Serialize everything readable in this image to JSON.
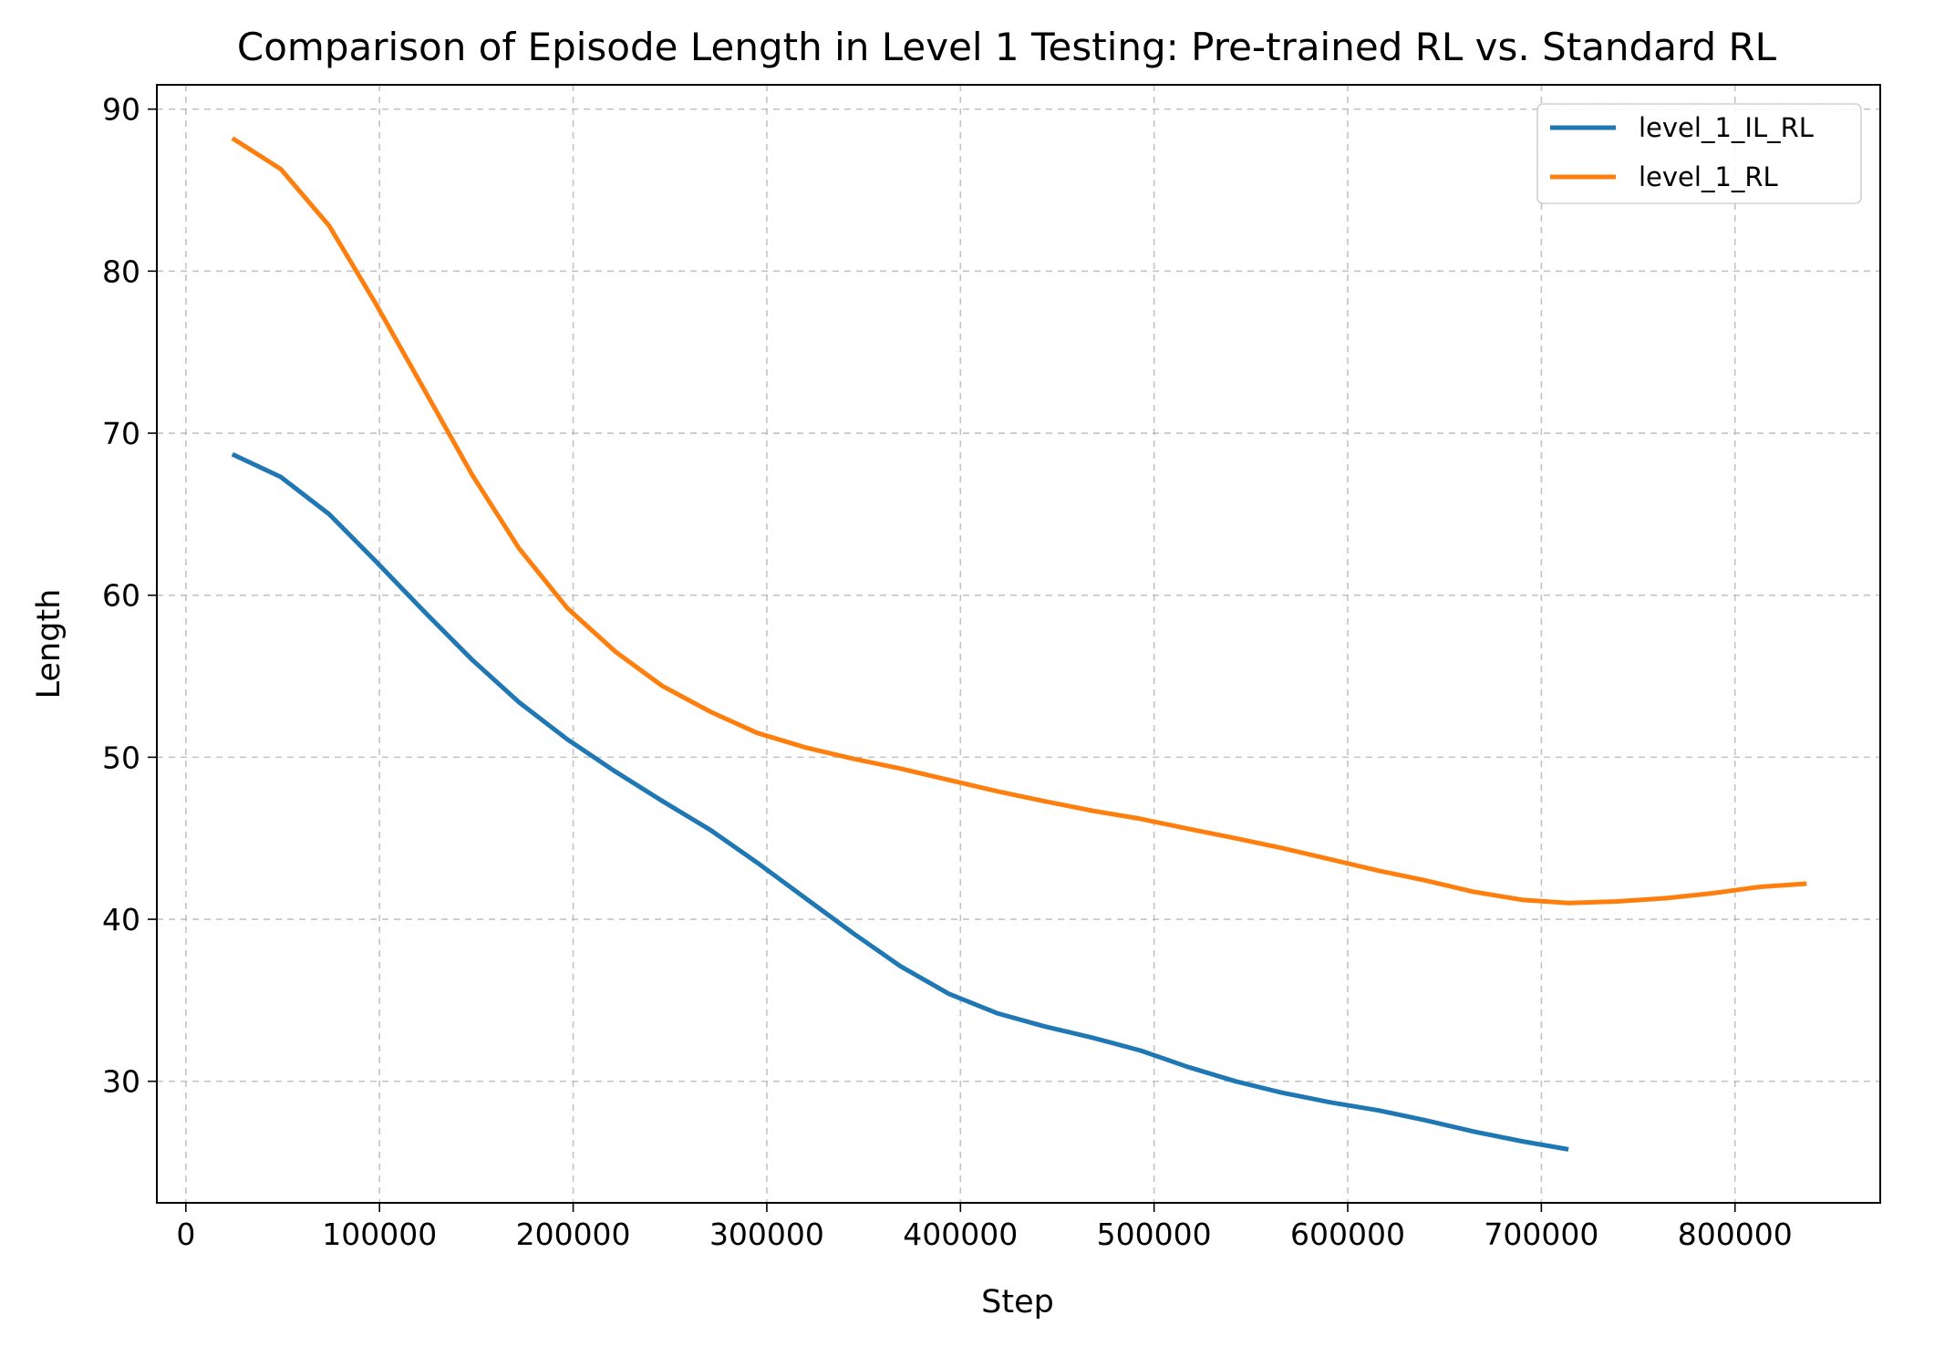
{
  "chart_data": {
    "type": "line",
    "title": "Comparison of Episode Length in Level 1 Testing: Pre-trained RL vs. Standard RL",
    "xlabel": "Step",
    "ylabel": "Length",
    "xlim": [
      -15000,
      875000
    ],
    "ylim": [
      22.5,
      91.5
    ],
    "xticks": [
      0,
      100000,
      200000,
      300000,
      400000,
      500000,
      600000,
      700000,
      800000
    ],
    "xtick_labels": [
      "0",
      "100000",
      "200000",
      "300000",
      "400000",
      "500000",
      "600000",
      "700000",
      "800000"
    ],
    "yticks": [
      30,
      40,
      50,
      60,
      70,
      80,
      90
    ],
    "ytick_labels": [
      "30",
      "40",
      "50",
      "60",
      "70",
      "80",
      "90"
    ],
    "grid": true,
    "legend_position": "top-right",
    "series": [
      {
        "name": "level_1_IL_RL",
        "color": "#1f77b4",
        "x": [
          24000,
          49000,
          74000,
          98000,
          123000,
          148000,
          172000,
          197000,
          222000,
          246000,
          271000,
          295000,
          320000,
          345000,
          369000,
          394000,
          419000,
          443000,
          468000,
          493000,
          517000,
          542000,
          566000,
          591000,
          616000,
          640000,
          665000,
          690000,
          714000
        ],
        "y": [
          68.7,
          67.3,
          65.0,
          62.1,
          59.0,
          56.0,
          53.4,
          51.1,
          49.1,
          47.3,
          45.5,
          43.5,
          41.3,
          39.1,
          37.1,
          35.4,
          34.2,
          33.4,
          32.7,
          31.9,
          30.9,
          30.0,
          29.3,
          28.7,
          28.2,
          27.6,
          26.9,
          26.3,
          25.8
        ]
      },
      {
        "name": "level_1_RL",
        "color": "#ff7f0e",
        "x": [
          24000,
          49000,
          74000,
          98000,
          123000,
          148000,
          172000,
          197000,
          222000,
          246000,
          271000,
          295000,
          320000,
          345000,
          369000,
          394000,
          419000,
          443000,
          468000,
          493000,
          517000,
          542000,
          566000,
          591000,
          616000,
          640000,
          665000,
          690000,
          714000,
          739000,
          764000,
          788000,
          813000,
          837000
        ],
        "y": [
          88.2,
          86.3,
          82.8,
          78.0,
          72.7,
          67.4,
          62.9,
          59.2,
          56.5,
          54.4,
          52.8,
          51.5,
          50.6,
          49.9,
          49.3,
          48.6,
          47.9,
          47.3,
          46.7,
          46.2,
          45.6,
          45.0,
          44.4,
          43.7,
          43.0,
          42.4,
          41.7,
          41.2,
          41.0,
          41.1,
          41.3,
          41.6,
          42.0,
          42.2
        ]
      }
    ]
  }
}
